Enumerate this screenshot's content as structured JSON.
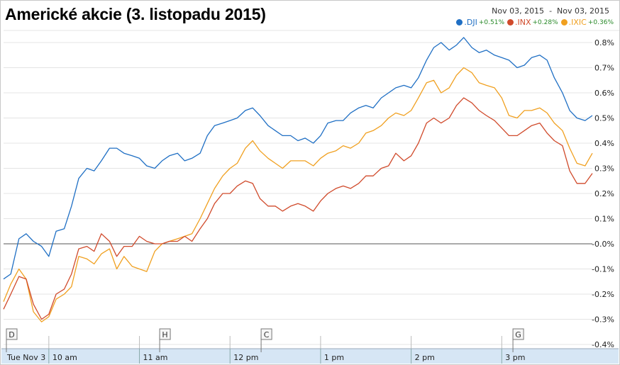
{
  "title": "Americké akcie (3. listopadu 2015)",
  "date_range": {
    "from": "Nov 03, 2015",
    "separator": "-",
    "to": "Nov 03, 2015"
  },
  "legend": [
    {
      "symbol": ".DJI",
      "change": "+0.51%",
      "color": "#1f6fc4"
    },
    {
      "symbol": ".INX",
      "change": "+0.28%",
      "color": "#d04a2b"
    },
    {
      "symbol": ".IXIC",
      "change": "+0.36%",
      "color": "#f0a020"
    }
  ],
  "markers": [
    "D",
    "H",
    "C",
    "G"
  ],
  "chart_data": {
    "type": "line",
    "title": "Americké akcie (3. listopadu 2015)",
    "xlabel": "",
    "ylabel": "",
    "x_tick_labels": [
      "Tue Nov 3",
      "10 am",
      "11 am",
      "12 pm",
      "1 pm",
      "2 pm",
      "3 pm"
    ],
    "x_ticks_hours": [
      9.5,
      10,
      11,
      12,
      13,
      14,
      15
    ],
    "xlim": [
      9.5,
      16
    ],
    "y_tick_labels": [
      "0.8%",
      "0.7%",
      "0.6%",
      "0.5%",
      "0.4%",
      "0.3%",
      "0.2%",
      "0.1%",
      "-0.0%",
      "-0.1%",
      "-0.2%",
      "-0.3%",
      "-0.4%"
    ],
    "y_ticks": [
      0.8,
      0.7,
      0.6,
      0.5,
      0.4,
      0.3,
      0.2,
      0.1,
      0.0,
      -0.1,
      -0.2,
      -0.3,
      -0.4
    ],
    "ylim": [
      -0.4,
      0.8
    ],
    "grid": true,
    "annotations": [
      {
        "label": "D",
        "x": 9.53
      },
      {
        "label": "H",
        "x": 11.2
      },
      {
        "label": "C",
        "x": 12.32
      },
      {
        "label": "G",
        "x": 15.1
      }
    ],
    "series": [
      {
        "name": ".DJI",
        "color": "#1f6fc4",
        "points": [
          [
            9.5,
            -0.14
          ],
          [
            9.58,
            -0.12
          ],
          [
            9.67,
            0.02
          ],
          [
            9.75,
            0.04
          ],
          [
            9.83,
            0.01
          ],
          [
            9.92,
            -0.01
          ],
          [
            10.0,
            -0.05
          ],
          [
            10.08,
            0.05
          ],
          [
            10.17,
            0.06
          ],
          [
            10.25,
            0.15
          ],
          [
            10.33,
            0.26
          ],
          [
            10.42,
            0.3
          ],
          [
            10.5,
            0.29
          ],
          [
            10.58,
            0.33
          ],
          [
            10.67,
            0.38
          ],
          [
            10.75,
            0.38
          ],
          [
            10.83,
            0.36
          ],
          [
            10.92,
            0.35
          ],
          [
            11.0,
            0.34
          ],
          [
            11.08,
            0.31
          ],
          [
            11.17,
            0.3
          ],
          [
            11.25,
            0.33
          ],
          [
            11.33,
            0.35
          ],
          [
            11.42,
            0.36
          ],
          [
            11.5,
            0.33
          ],
          [
            11.58,
            0.34
          ],
          [
            11.67,
            0.36
          ],
          [
            11.75,
            0.43
          ],
          [
            11.83,
            0.47
          ],
          [
            11.92,
            0.48
          ],
          [
            12.0,
            0.49
          ],
          [
            12.08,
            0.5
          ],
          [
            12.17,
            0.53
          ],
          [
            12.25,
            0.54
          ],
          [
            12.33,
            0.51
          ],
          [
            12.42,
            0.47
          ],
          [
            12.5,
            0.45
          ],
          [
            12.58,
            0.43
          ],
          [
            12.67,
            0.43
          ],
          [
            12.75,
            0.41
          ],
          [
            12.83,
            0.42
          ],
          [
            12.92,
            0.4
          ],
          [
            13.0,
            0.43
          ],
          [
            13.08,
            0.48
          ],
          [
            13.17,
            0.49
          ],
          [
            13.25,
            0.49
          ],
          [
            13.33,
            0.52
          ],
          [
            13.42,
            0.54
          ],
          [
            13.5,
            0.55
          ],
          [
            13.58,
            0.54
          ],
          [
            13.67,
            0.58
          ],
          [
            13.75,
            0.6
          ],
          [
            13.83,
            0.62
          ],
          [
            13.92,
            0.63
          ],
          [
            14.0,
            0.62
          ],
          [
            14.08,
            0.66
          ],
          [
            14.17,
            0.73
          ],
          [
            14.25,
            0.78
          ],
          [
            14.33,
            0.8
          ],
          [
            14.42,
            0.77
          ],
          [
            14.5,
            0.79
          ],
          [
            14.58,
            0.82
          ],
          [
            14.67,
            0.78
          ],
          [
            14.75,
            0.76
          ],
          [
            14.83,
            0.77
          ],
          [
            14.92,
            0.75
          ],
          [
            15.0,
            0.74
          ],
          [
            15.08,
            0.73
          ],
          [
            15.17,
            0.7
          ],
          [
            15.25,
            0.71
          ],
          [
            15.33,
            0.74
          ],
          [
            15.42,
            0.75
          ],
          [
            15.5,
            0.73
          ],
          [
            15.58,
            0.66
          ],
          [
            15.67,
            0.6
          ],
          [
            15.75,
            0.53
          ],
          [
            15.83,
            0.5
          ],
          [
            15.92,
            0.49
          ],
          [
            16.0,
            0.51
          ]
        ]
      },
      {
        "name": ".INX",
        "color": "#d04a2b",
        "points": [
          [
            9.5,
            -0.26
          ],
          [
            9.58,
            -0.2
          ],
          [
            9.67,
            -0.13
          ],
          [
            9.75,
            -0.14
          ],
          [
            9.83,
            -0.24
          ],
          [
            9.92,
            -0.3
          ],
          [
            10.0,
            -0.28
          ],
          [
            10.08,
            -0.2
          ],
          [
            10.17,
            -0.18
          ],
          [
            10.25,
            -0.12
          ],
          [
            10.33,
            -0.02
          ],
          [
            10.42,
            -0.01
          ],
          [
            10.5,
            -0.03
          ],
          [
            10.58,
            0.04
          ],
          [
            10.67,
            0.01
          ],
          [
            10.75,
            -0.05
          ],
          [
            10.83,
            -0.01
          ],
          [
            10.92,
            -0.01
          ],
          [
            11.0,
            0.03
          ],
          [
            11.08,
            0.01
          ],
          [
            11.17,
            0.0
          ],
          [
            11.25,
            0.0
          ],
          [
            11.33,
            0.01
          ],
          [
            11.42,
            0.01
          ],
          [
            11.5,
            0.03
          ],
          [
            11.58,
            0.01
          ],
          [
            11.67,
            0.06
          ],
          [
            11.75,
            0.1
          ],
          [
            11.83,
            0.16
          ],
          [
            11.92,
            0.2
          ],
          [
            12.0,
            0.2
          ],
          [
            12.08,
            0.23
          ],
          [
            12.17,
            0.25
          ],
          [
            12.25,
            0.24
          ],
          [
            12.33,
            0.18
          ],
          [
            12.42,
            0.15
          ],
          [
            12.5,
            0.15
          ],
          [
            12.58,
            0.13
          ],
          [
            12.67,
            0.15
          ],
          [
            12.75,
            0.16
          ],
          [
            12.83,
            0.15
          ],
          [
            12.92,
            0.13
          ],
          [
            13.0,
            0.17
          ],
          [
            13.08,
            0.2
          ],
          [
            13.17,
            0.22
          ],
          [
            13.25,
            0.23
          ],
          [
            13.33,
            0.22
          ],
          [
            13.42,
            0.24
          ],
          [
            13.5,
            0.27
          ],
          [
            13.58,
            0.27
          ],
          [
            13.67,
            0.3
          ],
          [
            13.75,
            0.31
          ],
          [
            13.83,
            0.36
          ],
          [
            13.92,
            0.33
          ],
          [
            14.0,
            0.35
          ],
          [
            14.08,
            0.4
          ],
          [
            14.17,
            0.48
          ],
          [
            14.25,
            0.5
          ],
          [
            14.33,
            0.48
          ],
          [
            14.42,
            0.5
          ],
          [
            14.5,
            0.55
          ],
          [
            14.58,
            0.58
          ],
          [
            14.67,
            0.56
          ],
          [
            14.75,
            0.53
          ],
          [
            14.83,
            0.51
          ],
          [
            14.92,
            0.49
          ],
          [
            15.0,
            0.46
          ],
          [
            15.08,
            0.43
          ],
          [
            15.17,
            0.43
          ],
          [
            15.25,
            0.45
          ],
          [
            15.33,
            0.47
          ],
          [
            15.42,
            0.48
          ],
          [
            15.5,
            0.44
          ],
          [
            15.58,
            0.41
          ],
          [
            15.67,
            0.39
          ],
          [
            15.75,
            0.29
          ],
          [
            15.83,
            0.24
          ],
          [
            15.92,
            0.24
          ],
          [
            16.0,
            0.28
          ]
        ]
      },
      {
        "name": ".IXIC",
        "color": "#f0a020",
        "points": [
          [
            9.5,
            -0.23
          ],
          [
            9.58,
            -0.16
          ],
          [
            9.67,
            -0.1
          ],
          [
            9.75,
            -0.14
          ],
          [
            9.83,
            -0.27
          ],
          [
            9.92,
            -0.31
          ],
          [
            10.0,
            -0.29
          ],
          [
            10.08,
            -0.22
          ],
          [
            10.17,
            -0.2
          ],
          [
            10.25,
            -0.17
          ],
          [
            10.33,
            -0.05
          ],
          [
            10.42,
            -0.06
          ],
          [
            10.5,
            -0.08
          ],
          [
            10.58,
            -0.04
          ],
          [
            10.67,
            -0.02
          ],
          [
            10.75,
            -0.1
          ],
          [
            10.83,
            -0.05
          ],
          [
            10.92,
            -0.09
          ],
          [
            11.0,
            -0.1
          ],
          [
            11.08,
            -0.11
          ],
          [
            11.17,
            -0.03
          ],
          [
            11.25,
            0.0
          ],
          [
            11.33,
            0.01
          ],
          [
            11.42,
            0.02
          ],
          [
            11.5,
            0.03
          ],
          [
            11.58,
            0.04
          ],
          [
            11.67,
            0.1
          ],
          [
            11.75,
            0.16
          ],
          [
            11.83,
            0.22
          ],
          [
            11.92,
            0.27
          ],
          [
            12.0,
            0.3
          ],
          [
            12.08,
            0.32
          ],
          [
            12.17,
            0.38
          ],
          [
            12.25,
            0.41
          ],
          [
            12.33,
            0.37
          ],
          [
            12.42,
            0.34
          ],
          [
            12.5,
            0.32
          ],
          [
            12.58,
            0.3
          ],
          [
            12.67,
            0.33
          ],
          [
            12.75,
            0.33
          ],
          [
            12.83,
            0.33
          ],
          [
            12.92,
            0.31
          ],
          [
            13.0,
            0.34
          ],
          [
            13.08,
            0.36
          ],
          [
            13.17,
            0.37
          ],
          [
            13.25,
            0.39
          ],
          [
            13.33,
            0.38
          ],
          [
            13.42,
            0.4
          ],
          [
            13.5,
            0.44
          ],
          [
            13.58,
            0.45
          ],
          [
            13.67,
            0.47
          ],
          [
            13.75,
            0.5
          ],
          [
            13.83,
            0.52
          ],
          [
            13.92,
            0.51
          ],
          [
            14.0,
            0.53
          ],
          [
            14.08,
            0.58
          ],
          [
            14.17,
            0.64
          ],
          [
            14.25,
            0.65
          ],
          [
            14.33,
            0.6
          ],
          [
            14.42,
            0.62
          ],
          [
            14.5,
            0.67
          ],
          [
            14.58,
            0.7
          ],
          [
            14.67,
            0.68
          ],
          [
            14.75,
            0.64
          ],
          [
            14.83,
            0.63
          ],
          [
            14.92,
            0.62
          ],
          [
            15.0,
            0.58
          ],
          [
            15.08,
            0.51
          ],
          [
            15.17,
            0.5
          ],
          [
            15.25,
            0.53
          ],
          [
            15.33,
            0.53
          ],
          [
            15.42,
            0.54
          ],
          [
            15.5,
            0.52
          ],
          [
            15.58,
            0.48
          ],
          [
            15.67,
            0.45
          ],
          [
            15.75,
            0.38
          ],
          [
            15.83,
            0.32
          ],
          [
            15.92,
            0.31
          ],
          [
            16.0,
            0.36
          ]
        ]
      }
    ]
  }
}
